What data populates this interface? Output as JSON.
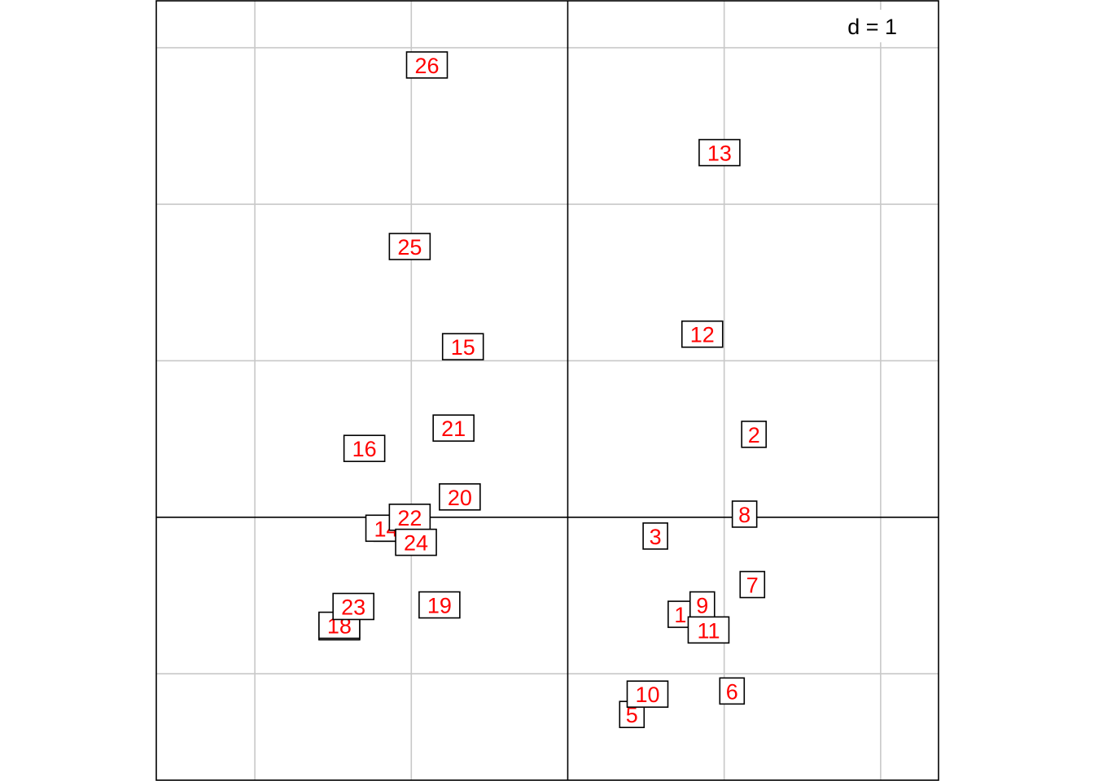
{
  "chart_data": {
    "type": "scatter",
    "scale_label": "d = 1",
    "grid_step": 1,
    "xlim": [
      -2.63,
      2.37
    ],
    "ylim": [
      -1.68,
      3.3
    ],
    "grid": true,
    "point_style": "boxed-labels",
    "label_color": "#ff0000",
    "points": [
      {
        "label": "1",
        "x": 0.72,
        "y": -0.62
      },
      {
        "label": "2",
        "x": 1.19,
        "y": 0.53
      },
      {
        "label": "3",
        "x": 0.56,
        "y": -0.12
      },
      {
        "label": "4",
        "x": -1.16,
        "y": -0.07
      },
      {
        "label": "5",
        "x": 0.41,
        "y": -1.26
      },
      {
        "label": "6",
        "x": 1.05,
        "y": -1.11
      },
      {
        "label": "7",
        "x": 1.18,
        "y": -0.43
      },
      {
        "label": "8",
        "x": 1.13,
        "y": 0.02
      },
      {
        "label": "9",
        "x": 0.86,
        "y": -0.56
      },
      {
        "label": "10",
        "x": 0.51,
        "y": -1.13
      },
      {
        "label": "11",
        "x": 0.9,
        "y": -0.72
      },
      {
        "label": "12",
        "x": 0.86,
        "y": 1.17
      },
      {
        "label": "13",
        "x": 0.97,
        "y": 2.33
      },
      {
        "label": "14",
        "x": -1.16,
        "y": -0.07
      },
      {
        "label": "15",
        "x": -0.67,
        "y": 1.09
      },
      {
        "label": "16",
        "x": -1.3,
        "y": 0.44
      },
      {
        "label": "17",
        "x": -1.46,
        "y": -0.7
      },
      {
        "label": "18",
        "x": -1.46,
        "y": -0.69
      },
      {
        "label": "19",
        "x": -0.82,
        "y": -0.56
      },
      {
        "label": "20",
        "x": -0.69,
        "y": 0.13
      },
      {
        "label": "21",
        "x": -0.73,
        "y": 0.57
      },
      {
        "label": "22",
        "x": -1.01,
        "y": 0.0
      },
      {
        "label": "23",
        "x": -1.37,
        "y": -0.57
      },
      {
        "label": "24",
        "x": -0.97,
        "y": -0.16
      },
      {
        "label": "25",
        "x": -1.01,
        "y": 1.73
      },
      {
        "label": "26",
        "x": -0.9,
        "y": 2.89
      }
    ]
  }
}
